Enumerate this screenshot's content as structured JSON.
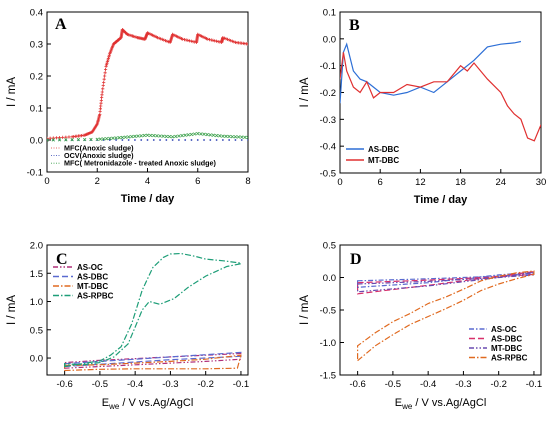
{
  "panels": [
    {
      "id": "A",
      "label": "A",
      "xlabel": "Time / day",
      "ylabel": "I / mA",
      "xlim": [
        0,
        8
      ],
      "ylim": [
        -0.1,
        0.4
      ],
      "xticks": [
        0,
        2,
        4,
        6,
        8
      ],
      "yticks": [
        -0.1,
        0.0,
        0.1,
        0.2,
        0.3,
        0.4
      ],
      "ytick_labels": [
        "-0.1",
        "0.0",
        "0.1",
        "0.2",
        "0.3",
        "0.4"
      ],
      "legend": [
        {
          "name": "MFC(Anoxic sludge)",
          "color": "#e03030",
          "marker": "plus"
        },
        {
          "name": "OCV(Anoxic sludge)",
          "color": "#2a3fb0",
          "marker": "dot"
        },
        {
          "name": "MFC( Metronidazole - treated Anoxic sludge)",
          "color": "#3aa04a",
          "marker": "x"
        }
      ]
    },
    {
      "id": "B",
      "label": "B",
      "xlabel": "Time / day",
      "ylabel": "I / mA",
      "xlim": [
        0,
        30
      ],
      "ylim": [
        -0.5,
        0.1
      ],
      "xticks": [
        0,
        6,
        12,
        18,
        24,
        30
      ],
      "yticks": [
        -0.5,
        -0.4,
        -0.3,
        -0.2,
        -0.1,
        0.0,
        0.1
      ],
      "ytick_labels": [
        "-0.5",
        "-0.4",
        "-0.3",
        "-0.2",
        "-0.1",
        "0.0",
        "0.1"
      ],
      "legend": [
        {
          "name": "AS-DBC",
          "color": "#2d6fd6"
        },
        {
          "name": "MT-DBC",
          "color": "#e03030"
        }
      ]
    },
    {
      "id": "C",
      "label": "C",
      "xlabel_main": "E",
      "xlabel_sub": "we",
      "xlabel_rest": " / V vs.Ag/AgCl",
      "ylabel": "I / mA",
      "xlim": [
        -0.65,
        -0.08
      ],
      "ylim": [
        -0.3,
        2.0
      ],
      "xticks": [
        -0.6,
        -0.5,
        -0.4,
        -0.3,
        -0.2,
        -0.1
      ],
      "xtick_labels": [
        "-0.6",
        "-0.5",
        "-0.4",
        "-0.3",
        "-0.2",
        "-0.1"
      ],
      "yticks": [
        0.0,
        0.5,
        1.0,
        1.5,
        2.0
      ],
      "ytick_labels": [
        "0.0",
        "0.5",
        "1.0",
        "1.5",
        "2.0"
      ],
      "legend": [
        {
          "name": "AS-OC",
          "color": "#b0307a",
          "dash": "5,2,1.5,2,1.5,2"
        },
        {
          "name": "AS-DBC",
          "color": "#5a6ad0",
          "dash": "6,3"
        },
        {
          "name": "MT-DBC",
          "color": "#e06a20",
          "dash": "6,2,1.5,2"
        },
        {
          "name": "AS-RPBC",
          "color": "#1e9e78",
          "dash": "6,2,1.5,2"
        }
      ]
    },
    {
      "id": "D",
      "label": "D",
      "xlabel_main": "E",
      "xlabel_sub": "we",
      "xlabel_rest": " / V vs.Ag/AgCl",
      "ylabel": "I / mA",
      "xlim": [
        -0.65,
        -0.08
      ],
      "ylim": [
        -1.5,
        0.5
      ],
      "xticks": [
        -0.6,
        -0.5,
        -0.4,
        -0.3,
        -0.2,
        -0.1
      ],
      "xtick_labels": [
        "-0.6",
        "-0.5",
        "-0.4",
        "-0.3",
        "-0.2",
        "-0.1"
      ],
      "yticks": [
        -1.5,
        -1.0,
        -0.5,
        0.0,
        0.5
      ],
      "ytick_labels": [
        "-1.5",
        "-1.0",
        "-0.5",
        "0.0",
        "0.5"
      ],
      "legend": [
        {
          "name": "AS-OC",
          "color": "#5a6ad0",
          "dash": "5,2,1.5,2"
        },
        {
          "name": "AS-DBC",
          "color": "#d8306a",
          "dash": "6,3"
        },
        {
          "name": "MT-DBC",
          "color": "#6a4bb0",
          "dash": "5,2,1.5,2,1.5,2"
        },
        {
          "name": "AS-RPBC",
          "color": "#e06a20",
          "dash": "6,2,1.5,2"
        }
      ]
    }
  ],
  "chart_data": [
    {
      "panel": "A",
      "type": "scatter",
      "xlabel": "Time / day",
      "ylabel": "I / mA",
      "xlim": [
        0,
        8
      ],
      "ylim": [
        -0.1,
        0.4
      ],
      "series": [
        {
          "name": "MFC(Anoxic sludge)",
          "x": [
            0,
            1,
            1.5,
            1.8,
            2.0,
            2.1,
            2.2,
            2.35,
            2.5,
            2.65,
            2.8,
            2.95,
            3.0,
            3.2,
            3.6,
            3.9,
            4.0,
            4.4,
            4.9,
            5.0,
            5.4,
            5.95,
            6.0,
            6.4,
            6.95,
            7.0,
            7.5,
            8.0
          ],
          "y": [
            0.005,
            0.01,
            0.015,
            0.025,
            0.05,
            0.08,
            0.15,
            0.23,
            0.27,
            0.3,
            0.31,
            0.32,
            0.345,
            0.33,
            0.32,
            0.315,
            0.335,
            0.32,
            0.305,
            0.33,
            0.315,
            0.305,
            0.33,
            0.315,
            0.305,
            0.32,
            0.305,
            0.3
          ]
        },
        {
          "name": "OCV(Anoxic sludge)",
          "x": [
            0,
            2,
            4,
            6,
            8
          ],
          "y": [
            0.0,
            0.0,
            0.0,
            0.0,
            0.0
          ]
        },
        {
          "name": "MFC( Metronidazole - treated Anoxic sludge)",
          "x": [
            0,
            2,
            3,
            4,
            5,
            6,
            7,
            8
          ],
          "y": [
            0.0,
            0.002,
            0.008,
            0.015,
            0.01,
            0.02,
            0.012,
            0.008
          ]
        }
      ]
    },
    {
      "panel": "B",
      "type": "line",
      "xlabel": "Time / day",
      "ylabel": "I / mA",
      "xlim": [
        0,
        30
      ],
      "ylim": [
        -0.5,
        0.1
      ],
      "series": [
        {
          "name": "AS-DBC",
          "x": [
            0,
            0.5,
            1,
            2,
            3,
            4,
            5,
            6,
            8,
            10,
            12,
            14,
            16,
            18,
            20,
            22,
            24,
            26,
            27
          ],
          "y": [
            -0.24,
            -0.05,
            -0.02,
            -0.12,
            -0.15,
            -0.16,
            -0.18,
            -0.2,
            -0.21,
            -0.2,
            -0.18,
            -0.2,
            -0.16,
            -0.12,
            -0.08,
            -0.03,
            -0.02,
            -0.015,
            -0.01
          ]
        },
        {
          "name": "MT-DBC",
          "x": [
            0,
            0.5,
            1,
            2,
            3,
            4,
            5,
            6,
            8,
            10,
            12,
            14,
            16,
            18,
            19,
            20,
            22,
            24,
            25,
            26,
            27,
            28,
            29,
            30
          ],
          "y": [
            -0.15,
            -0.05,
            -0.12,
            -0.18,
            -0.2,
            -0.16,
            -0.22,
            -0.2,
            -0.2,
            -0.17,
            -0.18,
            -0.16,
            -0.16,
            -0.1,
            -0.12,
            -0.09,
            -0.15,
            -0.2,
            -0.25,
            -0.28,
            -0.3,
            -0.37,
            -0.38,
            -0.32
          ]
        }
      ]
    },
    {
      "panel": "C",
      "type": "line",
      "xlabel": "Ewe / V vs.Ag/AgCl",
      "ylabel": "I / mA",
      "xlim": [
        -0.65,
        -0.08
      ],
      "ylim": [
        -0.3,
        2.0
      ],
      "series": [
        {
          "name": "AS-OC",
          "x": [
            -0.6,
            -0.5,
            -0.4,
            -0.3,
            -0.2,
            -0.1,
            -0.1,
            -0.2,
            -0.3,
            -0.4,
            -0.5,
            -0.6
          ],
          "y": [
            -0.18,
            -0.15,
            -0.12,
            -0.09,
            -0.06,
            -0.02,
            0.08,
            0.05,
            0.02,
            -0.01,
            -0.04,
            -0.08
          ]
        },
        {
          "name": "AS-DBC",
          "x": [
            -0.6,
            -0.5,
            -0.4,
            -0.3,
            -0.2,
            -0.1,
            -0.1,
            -0.2,
            -0.3,
            -0.4,
            -0.5,
            -0.6
          ],
          "y": [
            -0.15,
            -0.11,
            -0.07,
            -0.03,
            0.0,
            0.03,
            0.1,
            0.06,
            0.02,
            -0.02,
            -0.06,
            -0.1
          ]
        },
        {
          "name": "MT-DBC",
          "x": [
            -0.6,
            -0.5,
            -0.4,
            -0.3,
            -0.2,
            -0.11,
            -0.1,
            -0.2,
            -0.3,
            -0.4,
            -0.5,
            -0.6
          ],
          "y": [
            -0.22,
            -0.2,
            -0.19,
            -0.19,
            -0.19,
            -0.18,
            0.05,
            -0.02,
            -0.06,
            -0.09,
            -0.12,
            -0.13
          ]
        },
        {
          "name": "AS-RPBC",
          "x": [
            -0.6,
            -0.5,
            -0.47,
            -0.44,
            -0.41,
            -0.38,
            -0.35,
            -0.32,
            -0.3,
            -0.27,
            -0.23,
            -0.2,
            -0.15,
            -0.1,
            -0.1,
            -0.14,
            -0.2,
            -0.25,
            -0.29,
            -0.33,
            -0.36,
            -0.38,
            -0.4,
            -0.42,
            -0.46,
            -0.5,
            -0.55,
            -0.6
          ],
          "y": [
            -0.15,
            -0.05,
            0.05,
            0.2,
            0.6,
            1.2,
            1.6,
            1.78,
            1.84,
            1.85,
            1.8,
            1.75,
            1.72,
            1.68,
            1.67,
            1.62,
            1.45,
            1.25,
            1.05,
            0.95,
            1.0,
            0.85,
            0.55,
            0.25,
            0.02,
            -0.08,
            -0.12,
            -0.1
          ]
        }
      ]
    },
    {
      "panel": "D",
      "type": "line",
      "xlabel": "Ewe / V vs.Ag/AgCl",
      "ylabel": "I / mA",
      "xlim": [
        -0.65,
        -0.08
      ],
      "ylim": [
        -1.5,
        0.5
      ],
      "series": [
        {
          "name": "AS-OC",
          "x": [
            -0.6,
            -0.4,
            -0.2,
            -0.1,
            -0.1,
            -0.2,
            -0.4,
            -0.6
          ],
          "y": [
            -0.05,
            -0.02,
            0.02,
            0.06,
            0.08,
            0.04,
            -0.08,
            -0.15
          ]
        },
        {
          "name": "AS-DBC",
          "x": [
            -0.6,
            -0.4,
            -0.2,
            -0.1,
            -0.1,
            -0.2,
            -0.4,
            -0.6
          ],
          "y": [
            -0.08,
            -0.04,
            0.01,
            0.05,
            0.09,
            0.02,
            -0.12,
            -0.25
          ]
        },
        {
          "name": "MT-DBC",
          "x": [
            -0.6,
            -0.4,
            -0.2,
            -0.1,
            -0.1,
            -0.2,
            -0.4,
            -0.6
          ],
          "y": [
            -0.1,
            -0.06,
            0.0,
            0.04,
            0.08,
            0.0,
            -0.13,
            -0.22
          ]
        },
        {
          "name": "AS-RPBC",
          "x": [
            -0.6,
            -0.55,
            -0.5,
            -0.45,
            -0.4,
            -0.35,
            -0.3,
            -0.25,
            -0.2,
            -0.15,
            -0.1,
            -0.1,
            -0.15,
            -0.2,
            -0.25,
            -0.3,
            -0.35,
            -0.4,
            -0.45,
            -0.5,
            -0.55,
            -0.6
          ],
          "y": [
            -1.28,
            -1.05,
            -0.88,
            -0.72,
            -0.6,
            -0.48,
            -0.35,
            -0.2,
            -0.1,
            -0.02,
            0.05,
            0.1,
            0.07,
            0.02,
            -0.05,
            -0.18,
            -0.3,
            -0.4,
            -0.55,
            -0.68,
            -0.85,
            -1.05
          ]
        }
      ]
    }
  ]
}
